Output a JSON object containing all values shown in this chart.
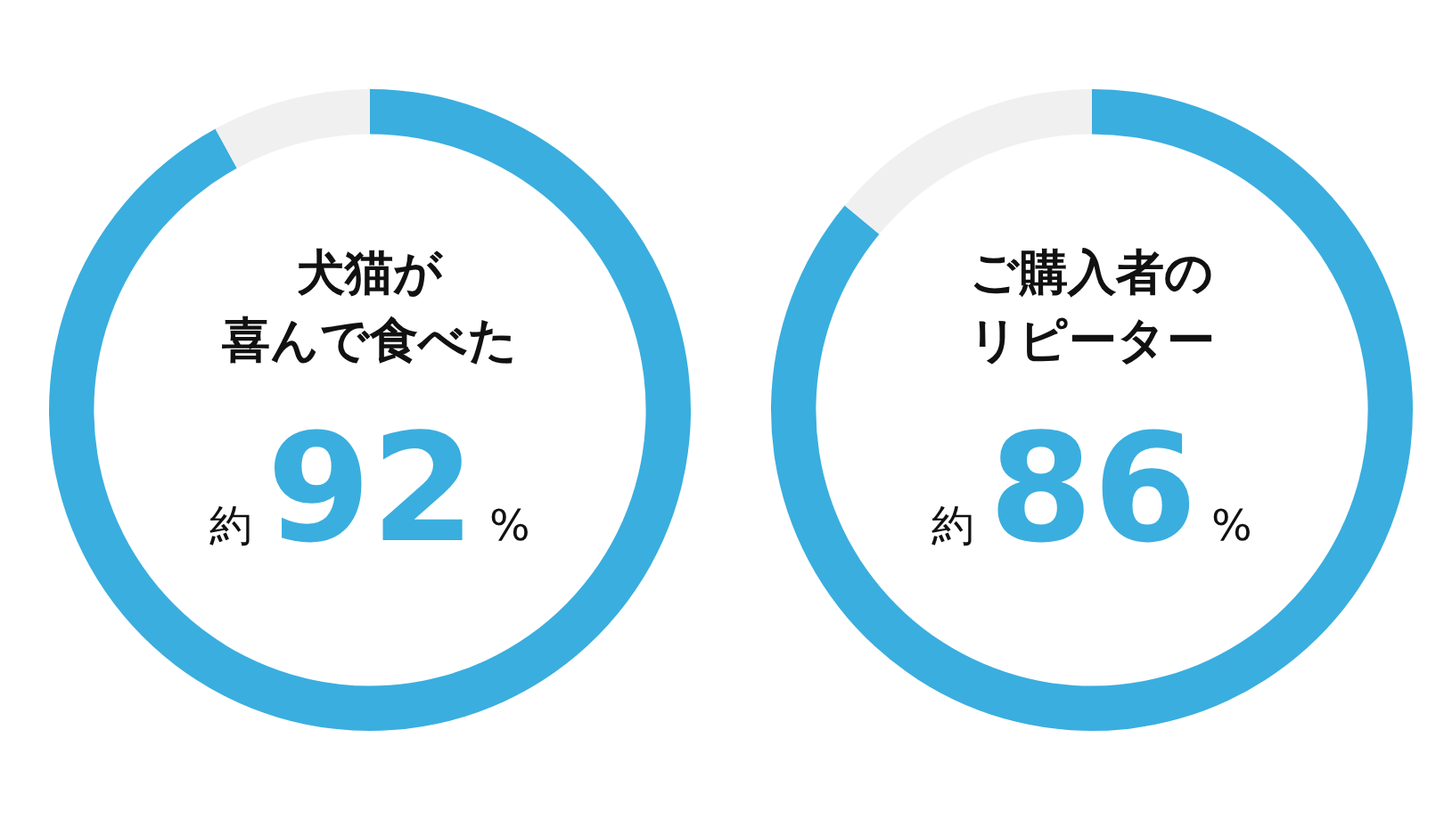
{
  "chart_data": [
    {
      "type": "donut",
      "title": "犬猫が",
      "subtitle": "喜んで食べた",
      "categories": [
        null,
        null
      ],
      "values": [
        92,
        8
      ],
      "colors": [
        "#3aaedf",
        "#f0f0f0"
      ],
      "value_labels": [
        "約92%",
        null
      ],
      "legend": false
    },
    {
      "type": "donut",
      "title": "ご購入者の",
      "subtitle": "リピーター",
      "categories": [
        null,
        null
      ],
      "values": [
        86,
        14
      ],
      "colors": [
        "#3aaedf",
        "#f0f0f0"
      ],
      "value_labels": [
        "約86%",
        null
      ],
      "legend": false
    }
  ]
}
